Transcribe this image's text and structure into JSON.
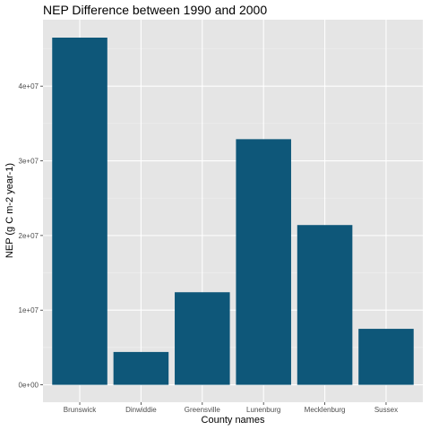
{
  "chart_data": {
    "type": "bar",
    "title": "NEP Difference between 1990 and 2000",
    "xlabel": "County names",
    "ylabel": "NEP (g C m-2 year-1)",
    "categories": [
      "Brunswick",
      "Dinwiddie",
      "Greensville",
      "Lunenburg",
      "Mecklenburg",
      "Sussex"
    ],
    "values": [
      46500000,
      4400000,
      12400000,
      32900000,
      21400000,
      7500000
    ],
    "ylim": [
      -2330000,
      48900000
    ],
    "yticks": [
      0,
      10000000,
      20000000,
      30000000,
      40000000
    ],
    "ytick_labels": [
      "0e+00",
      "1e+07",
      "2e+07",
      "3e+07",
      "4e+07"
    ],
    "grid": true,
    "colors": {
      "bar": "#0e5779",
      "panel": "#e5e5e5",
      "grid_major": "#ffffff",
      "grid_minor": "#f0f0f0"
    }
  }
}
